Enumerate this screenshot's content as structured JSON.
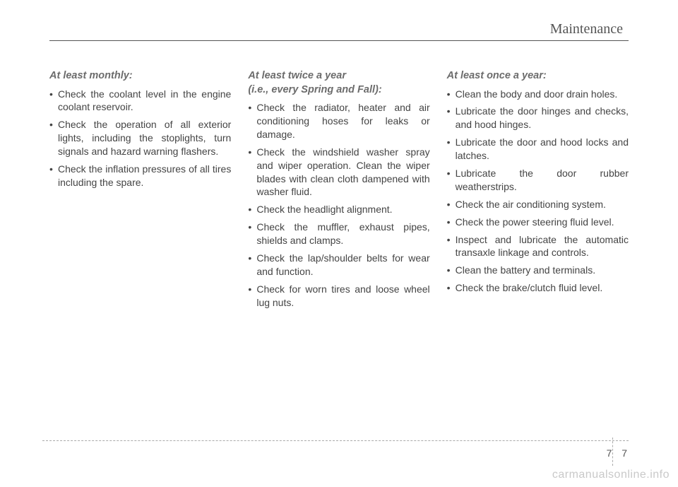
{
  "header": {
    "title": "Maintenance"
  },
  "columns": {
    "left": {
      "heading": "At least monthly:",
      "items": [
        "Check the coolant level in the engine coolant reservoir.",
        "Check the operation of all exterior lights, including the stoplights, turn signals and hazard warning flashers.",
        "Check the inflation pressures of all tires including the spare."
      ]
    },
    "middle": {
      "heading": "At least twice a year",
      "heading2": "(i.e., every Spring and Fall):",
      "items": [
        "Check the radiator, heater and air conditioning hoses for leaks or damage.",
        "Check the windshield washer spray and wiper operation. Clean the wiper blades with clean cloth dampened with washer fluid.",
        "Check the headlight alignment.",
        "Check the muffler, exhaust pipes, shields and clamps.",
        "Check the lap/shoulder belts for wear and function.",
        "Check for worn tires and loose wheel lug nuts."
      ]
    },
    "right": {
      "heading": "At least once a year:",
      "items": [
        "Clean the body and door drain holes.",
        "Lubricate the door hinges and checks, and hood hinges.",
        "Lubricate the door and hood locks and latches.",
        "Lubricate the door rubber weatherstrips.",
        "Check the air conditioning system.",
        "Check the power steering fluid level.",
        "Inspect and lubricate the automatic transaxle linkage and controls.",
        "Clean the battery and terminals.",
        "Check the brake/clutch fluid level."
      ]
    }
  },
  "footer": {
    "section": "7",
    "page": "7"
  },
  "watermark": "carmanualsonline.info"
}
